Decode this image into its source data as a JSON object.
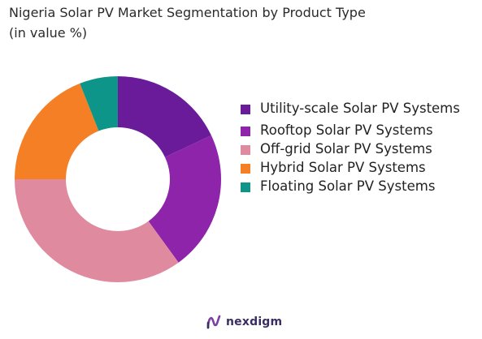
{
  "header": {
    "title_line1": "Nigeria Solar PV Market Segmentation by Product Type",
    "title_line2": "(in value %)"
  },
  "brand": {
    "name": "nexdigm",
    "logo_icon": "nexdigm-logo-icon"
  },
  "chart_data": {
    "type": "pie",
    "donut": true,
    "title": "Nigeria Solar PV Market Segmentation by Product Type (in value %)",
    "legend_position": "right",
    "series": [
      {
        "name": "Utility-scale Solar PV Systems",
        "value": 18,
        "color": "#6a1b9a"
      },
      {
        "name": "Rooftop Solar PV Systems",
        "value": 22,
        "color": "#8e24aa"
      },
      {
        "name": "Off-grid Solar PV Systems",
        "value": 35,
        "color": "#e08aa0"
      },
      {
        "name": "Hybrid Solar PV Systems",
        "value": 19,
        "color": "#f47f24"
      },
      {
        "name": "Floating Solar PV Systems",
        "value": 6,
        "color": "#0e958a"
      }
    ]
  }
}
